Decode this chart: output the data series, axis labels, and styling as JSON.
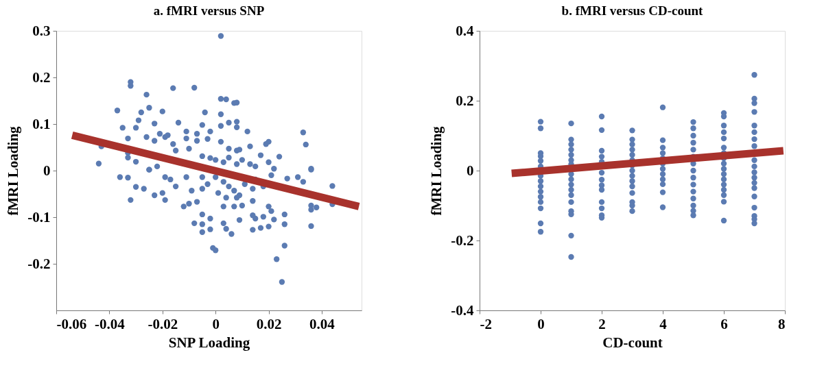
{
  "chart_data": [
    {
      "type": "scatter",
      "title": "a. fMRI versus SNP",
      "xlabel": "SNP Loading",
      "ylabel": "fMRI Loading",
      "xlim": [
        -0.06,
        0.055
      ],
      "ylim": [
        -0.3,
        0.3
      ],
      "xticks": [
        -0.06,
        -0.04,
        -0.02,
        0,
        0.02,
        0.04
      ],
      "yticks": [
        -0.2,
        -0.1,
        0,
        0.1,
        0.2,
        0.3
      ],
      "grid": false,
      "series": [
        {
          "marker": "circle",
          "color": "#5b7bb2",
          "x": [
            0.002,
            -0.032,
            -0.032,
            -0.016,
            -0.008,
            -0.026,
            -0.037,
            -0.02,
            -0.025,
            -0.028,
            0.002,
            0.004,
            0.007,
            0.008,
            0.002,
            -0.004,
            -0.029,
            -0.035,
            -0.03,
            -0.023,
            -0.014,
            -0.005,
            0.002,
            0.005,
            0.008,
            0.008,
            0.012,
            0.033,
            0.034,
            -0.026,
            -0.033,
            -0.043,
            -0.044,
            -0.03,
            -0.023,
            -0.021,
            -0.019,
            -0.018,
            -0.011,
            -0.011,
            -0.007,
            -0.007,
            -0.002,
            -0.003,
            0.02,
            0.019,
            0.024,
            0.013,
            -0.033,
            -0.033,
            -0.016,
            -0.015,
            -0.01,
            0.005,
            0.008,
            0.009,
            0.002,
            0.036,
            -0.025,
            -0.022,
            -0.005,
            -0.002,
            0.0,
            0.003,
            0.005,
            0.008,
            0.01,
            0.013,
            0.015,
            0.017,
            0.02,
            0.022,
            -0.036,
            -0.033,
            -0.03,
            -0.027,
            -0.032,
            -0.023,
            -0.02,
            -0.019,
            -0.019,
            -0.017,
            -0.015,
            -0.012,
            -0.01,
            -0.007,
            -0.009,
            -0.005,
            -0.011,
            -0.008,
            -0.005,
            -0.005,
            -0.005,
            -0.002,
            -0.002,
            -0.001,
            0.0,
            0.003,
            0.004,
            0.006,
            0.003,
            0.007,
            0.01,
            0.009,
            0.014,
            0.014,
            0.015,
            0.014,
            0.017,
            0.018,
            0.02,
            0.022,
            0.02,
            0.021,
            0.026,
            0.026,
            0.026,
            0.023,
            0.025,
            0.027,
            0.031,
            0.033,
            0.036,
            0.036,
            0.036,
            0.038,
            0.044,
            0.044,
            0.036,
            -0.025,
            0.0,
            0.003,
            0.005,
            0.007,
            0.009,
            0.011,
            0.014,
            0.015,
            0.018,
            0.021,
            -0.003,
            -0.005,
            0.001,
            0.004,
            0.008
          ],
          "values": [
            0.289,
            0.19,
            0.182,
            0.177,
            0.178,
            0.163,
            0.129,
            0.127,
            0.135,
            0.125,
            0.154,
            0.153,
            0.145,
            0.146,
            0.121,
            0.125,
            0.108,
            0.092,
            0.092,
            0.101,
            0.103,
            0.098,
            0.096,
            0.103,
            0.105,
            0.093,
            0.084,
            0.082,
            0.056,
            0.072,
            0.069,
            0.052,
            0.015,
            0.019,
            0.064,
            0.079,
            0.072,
            0.076,
            0.084,
            0.069,
            0.079,
            0.064,
            0.084,
            0.068,
            0.062,
            0.057,
            0.03,
            0.052,
            0.038,
            0.028,
            0.057,
            0.043,
            0.047,
            0.047,
            0.043,
            0.045,
            0.062,
            0.004,
            0.002,
            0.009,
            0.031,
            0.027,
            0.023,
            0.018,
            0.028,
            0.014,
            0.023,
            0.014,
            0.009,
            0.033,
            0.018,
            0.004,
            -0.014,
            -0.015,
            -0.035,
            -0.039,
            -0.063,
            -0.053,
            -0.048,
            -0.063,
            -0.014,
            -0.019,
            -0.034,
            -0.077,
            -0.071,
            -0.067,
            -0.043,
            -0.039,
            -0.014,
            -0.113,
            -0.115,
            -0.132,
            -0.094,
            -0.103,
            -0.126,
            -0.166,
            -0.171,
            -0.113,
            -0.125,
            -0.136,
            -0.077,
            -0.077,
            -0.075,
            -0.106,
            -0.065,
            -0.096,
            -0.103,
            -0.127,
            -0.123,
            -0.099,
            -0.12,
            -0.105,
            -0.077,
            -0.087,
            -0.094,
            -0.115,
            -0.161,
            -0.19,
            -0.239,
            -0.017,
            -0.014,
            -0.024,
            -0.075,
            -0.084,
            -0.119,
            -0.079,
            -0.033,
            -0.072,
            0.002,
            0.002,
            -0.014,
            -0.024,
            -0.034,
            -0.043,
            -0.053,
            -0.029,
            -0.039,
            -0.019,
            -0.034,
            -0.01,
            -0.029,
            -0.014,
            -0.048,
            -0.058,
            -0.058
          ]
        },
        {
          "type": "line",
          "line_style": "solid",
          "color": "#a8322c",
          "x": [
            -0.054,
            0.054
          ],
          "values": [
            0.076,
            -0.077
          ]
        }
      ]
    },
    {
      "type": "scatter",
      "title": "b. fMRI versus CD-count",
      "xlabel": "CD-count",
      "ylabel": "fMRI Loading",
      "xlim": [
        -2,
        8
      ],
      "ylim": [
        -0.4,
        0.4
      ],
      "xticks": [
        -2,
        0,
        2,
        4,
        6,
        8
      ],
      "yticks": [
        -0.4,
        -0.2,
        0,
        0.2,
        0.4
      ],
      "grid": false,
      "series": [
        {
          "marker": "circle",
          "color": "#5b7bb2",
          "x": [
            0,
            0,
            0,
            0,
            0,
            0,
            0,
            0,
            0,
            0,
            0,
            0,
            0,
            0,
            0,
            1,
            1,
            1,
            1,
            1,
            1,
            1,
            1,
            1,
            1,
            1,
            1,
            1,
            1,
            1,
            1,
            1,
            2,
            2,
            2,
            2,
            2,
            2,
            2,
            2,
            2,
            2,
            2,
            2,
            2,
            3,
            3,
            3,
            3,
            3,
            3,
            3,
            3,
            3,
            3,
            3,
            3,
            3,
            3,
            3,
            4,
            4,
            4,
            4,
            4,
            4,
            4,
            4,
            4,
            4,
            4,
            4,
            5,
            5,
            5,
            5,
            5,
            5,
            5,
            5,
            5,
            5,
            5,
            5,
            5,
            5,
            5,
            6,
            6,
            6,
            6,
            6,
            6,
            6,
            6,
            6,
            6,
            6,
            6,
            6,
            6,
            6,
            6,
            6,
            7,
            7,
            7,
            7,
            7,
            7,
            7,
            7,
            7,
            7,
            7,
            7,
            7,
            7,
            7,
            7,
            7,
            7,
            7
          ],
          "values": [
            0.14,
            0.121,
            0.05,
            0.041,
            0.028,
            0.012,
            -0.015,
            -0.03,
            -0.045,
            -0.06,
            -0.075,
            -0.09,
            -0.108,
            -0.151,
            -0.175,
            0.135,
            0.089,
            0.075,
            0.06,
            0.045,
            0.03,
            0.018,
            -0.01,
            -0.025,
            -0.04,
            -0.055,
            -0.07,
            -0.09,
            -0.116,
            -0.125,
            -0.186,
            -0.247,
            0.155,
            0.116,
            0.057,
            0.04,
            0.025,
            -0.006,
            -0.026,
            -0.042,
            -0.055,
            -0.09,
            -0.108,
            -0.128,
            -0.135,
            0.115,
            0.089,
            0.075,
            0.06,
            0.045,
            0.03,
            0.015,
            0,
            -0.015,
            -0.03,
            -0.045,
            -0.064,
            -0.09,
            -0.1,
            -0.116,
            0.181,
            0.087,
            0.066,
            0.05,
            0.035,
            0.02,
            0.005,
            -0.01,
            -0.025,
            -0.039,
            -0.062,
            -0.105,
            0.139,
            0.121,
            0.1,
            0.08,
            0.06,
            0.04,
            0.02,
            0,
            -0.02,
            -0.04,
            -0.06,
            -0.08,
            -0.1,
            -0.115,
            -0.128,
            0.165,
            0.155,
            0.129,
            0.11,
            0.092,
            0.066,
            0.05,
            0.035,
            0.02,
            0.005,
            -0.01,
            -0.025,
            -0.04,
            -0.055,
            -0.07,
            -0.089,
            -0.143,
            0.274,
            0.206,
            0.193,
            0.168,
            0.129,
            0.11,
            0.09,
            0.07,
            0.03,
            0.012,
            -0.005,
            -0.02,
            -0.035,
            -0.05,
            -0.074,
            -0.106,
            -0.13,
            -0.139,
            -0.151
          ]
        },
        {
          "type": "line",
          "line_style": "solid",
          "color": "#a8322c",
          "x": [
            -0.95,
            7.95
          ],
          "values": [
            -0.008,
            0.057
          ]
        }
      ]
    }
  ]
}
